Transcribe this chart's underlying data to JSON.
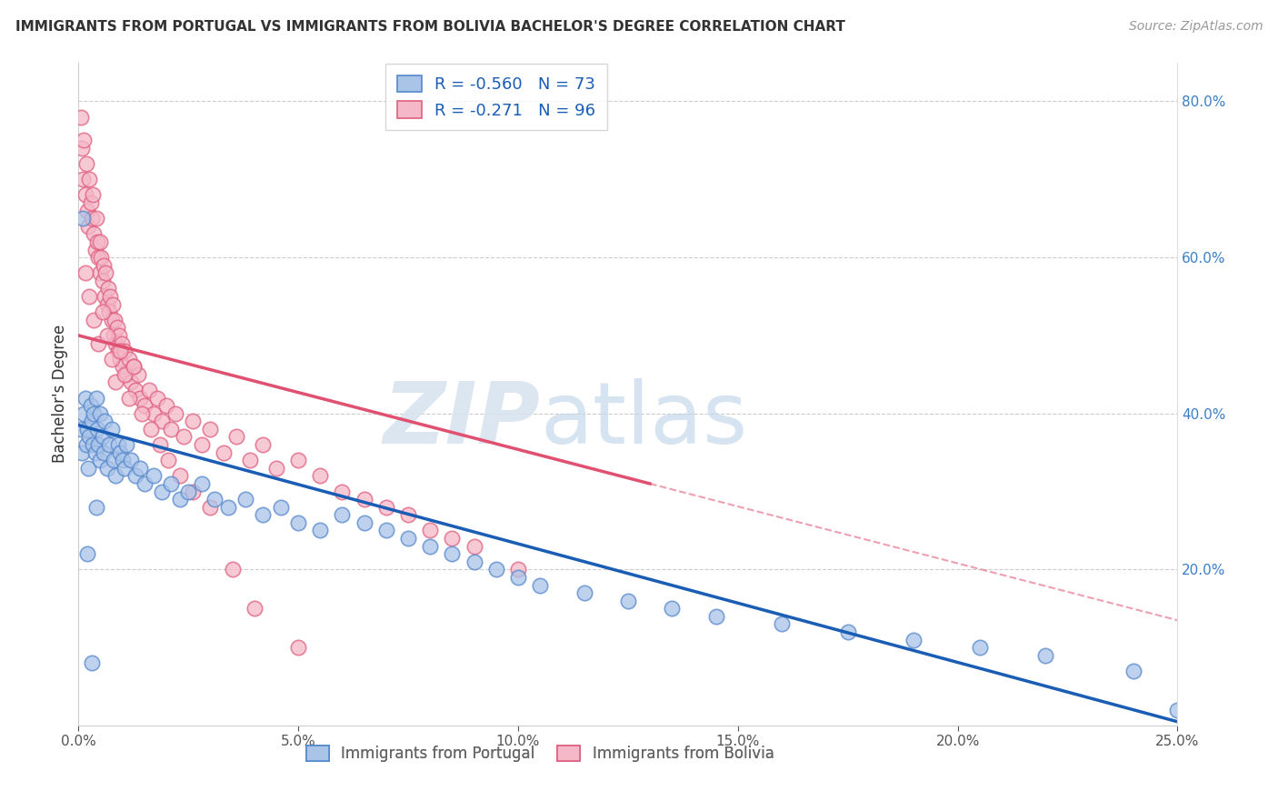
{
  "title": "IMMIGRANTS FROM PORTUGAL VS IMMIGRANTS FROM BOLIVIA BACHELOR'S DEGREE CORRELATION CHART",
  "source": "Source: ZipAtlas.com",
  "ylabel": "Bachelor's Degree",
  "x_tick_labels": [
    "0.0%",
    "5.0%",
    "10.0%",
    "15.0%",
    "20.0%",
    "25.0%"
  ],
  "x_tick_vals": [
    0.0,
    5.0,
    10.0,
    15.0,
    20.0,
    25.0
  ],
  "y_tick_labels": [
    "20.0%",
    "40.0%",
    "60.0%",
    "80.0%"
  ],
  "y_tick_vals": [
    20.0,
    40.0,
    60.0,
    80.0
  ],
  "xlim": [
    0.0,
    25.0
  ],
  "ylim": [
    0.0,
    85.0
  ],
  "blue_label": "Immigrants from Portugal",
  "pink_label": "Immigrants from Bolivia",
  "blue_R": -0.56,
  "blue_N": 73,
  "pink_R": -0.271,
  "pink_N": 96,
  "blue_color": "#aac4e8",
  "pink_color": "#f4b8c8",
  "blue_edge_color": "#5588cc",
  "pink_edge_color": "#e06080",
  "blue_line_color": "#1a5db5",
  "pink_line_color": "#e05070",
  "watermark_zip": "ZIP",
  "watermark_atlas": "atlas",
  "blue_scatter_x": [
    0.05,
    0.08,
    0.12,
    0.15,
    0.18,
    0.2,
    0.22,
    0.25,
    0.28,
    0.3,
    0.32,
    0.35,
    0.38,
    0.4,
    0.42,
    0.45,
    0.48,
    0.5,
    0.55,
    0.58,
    0.6,
    0.65,
    0.7,
    0.75,
    0.8,
    0.85,
    0.9,
    0.95,
    1.0,
    1.05,
    1.1,
    1.2,
    1.3,
    1.4,
    1.5,
    1.7,
    1.9,
    2.1,
    2.3,
    2.5,
    2.8,
    3.1,
    3.4,
    3.8,
    4.2,
    4.6,
    5.0,
    5.5,
    6.0,
    6.5,
    7.0,
    7.5,
    8.0,
    8.5,
    9.0,
    9.5,
    10.0,
    10.5,
    11.5,
    12.5,
    13.5,
    14.5,
    16.0,
    17.5,
    19.0,
    20.5,
    22.0,
    24.0,
    25.0,
    0.1,
    0.2,
    0.3,
    0.4
  ],
  "blue_scatter_y": [
    38.0,
    35.0,
    40.0,
    42.0,
    36.0,
    38.0,
    33.0,
    37.0,
    41.0,
    39.0,
    36.0,
    40.0,
    35.0,
    42.0,
    38.0,
    36.0,
    34.0,
    40.0,
    37.0,
    35.0,
    39.0,
    33.0,
    36.0,
    38.0,
    34.0,
    32.0,
    36.0,
    35.0,
    34.0,
    33.0,
    36.0,
    34.0,
    32.0,
    33.0,
    31.0,
    32.0,
    30.0,
    31.0,
    29.0,
    30.0,
    31.0,
    29.0,
    28.0,
    29.0,
    27.0,
    28.0,
    26.0,
    25.0,
    27.0,
    26.0,
    25.0,
    24.0,
    23.0,
    22.0,
    21.0,
    20.0,
    19.0,
    18.0,
    17.0,
    16.0,
    15.0,
    14.0,
    13.0,
    12.0,
    11.0,
    10.0,
    9.0,
    7.0,
    2.0,
    65.0,
    22.0,
    8.0,
    28.0
  ],
  "pink_scatter_x": [
    0.05,
    0.08,
    0.1,
    0.12,
    0.15,
    0.18,
    0.2,
    0.22,
    0.25,
    0.28,
    0.3,
    0.32,
    0.35,
    0.38,
    0.4,
    0.42,
    0.45,
    0.48,
    0.5,
    0.52,
    0.55,
    0.58,
    0.6,
    0.62,
    0.65,
    0.68,
    0.7,
    0.72,
    0.75,
    0.78,
    0.8,
    0.82,
    0.85,
    0.88,
    0.9,
    0.92,
    0.95,
    0.98,
    1.0,
    1.05,
    1.1,
    1.15,
    1.2,
    1.25,
    1.3,
    1.35,
    1.4,
    1.5,
    1.6,
    1.7,
    1.8,
    1.9,
    2.0,
    2.1,
    2.2,
    2.4,
    2.6,
    2.8,
    3.0,
    3.3,
    3.6,
    3.9,
    4.2,
    4.5,
    5.0,
    5.5,
    6.0,
    6.5,
    7.0,
    7.5,
    8.0,
    8.5,
    9.0,
    10.0,
    0.15,
    0.25,
    0.35,
    0.45,
    0.55,
    0.65,
    0.75,
    0.85,
    0.95,
    1.05,
    1.15,
    1.25,
    1.45,
    1.65,
    1.85,
    2.05,
    2.3,
    2.6,
    3.0,
    3.5,
    4.0,
    5.0
  ],
  "pink_scatter_y": [
    78.0,
    74.0,
    70.0,
    75.0,
    68.0,
    72.0,
    66.0,
    64.0,
    70.0,
    67.0,
    65.0,
    68.0,
    63.0,
    61.0,
    65.0,
    62.0,
    60.0,
    58.0,
    62.0,
    60.0,
    57.0,
    59.0,
    55.0,
    58.0,
    54.0,
    56.0,
    53.0,
    55.0,
    52.0,
    54.0,
    50.0,
    52.0,
    49.0,
    51.0,
    48.0,
    50.0,
    47.0,
    49.0,
    46.0,
    48.0,
    45.0,
    47.0,
    44.0,
    46.0,
    43.0,
    45.0,
    42.0,
    41.0,
    43.0,
    40.0,
    42.0,
    39.0,
    41.0,
    38.0,
    40.0,
    37.0,
    39.0,
    36.0,
    38.0,
    35.0,
    37.0,
    34.0,
    36.0,
    33.0,
    34.0,
    32.0,
    30.0,
    29.0,
    28.0,
    27.0,
    25.0,
    24.0,
    23.0,
    20.0,
    58.0,
    55.0,
    52.0,
    49.0,
    53.0,
    50.0,
    47.0,
    44.0,
    48.0,
    45.0,
    42.0,
    46.0,
    40.0,
    38.0,
    36.0,
    34.0,
    32.0,
    30.0,
    28.0,
    20.0,
    15.0,
    10.0
  ],
  "blue_trend_x0": 0.0,
  "blue_trend_y0": 38.5,
  "blue_trend_x1": 25.0,
  "blue_trend_y1": 0.5,
  "pink_trend_x0": 0.0,
  "pink_trend_y0": 50.0,
  "pink_trend_x1": 13.0,
  "pink_trend_y1": 31.0,
  "pink_dash_x0": 13.0,
  "pink_dash_y0": 31.0,
  "pink_dash_x1": 25.0,
  "pink_dash_y1": 13.5
}
